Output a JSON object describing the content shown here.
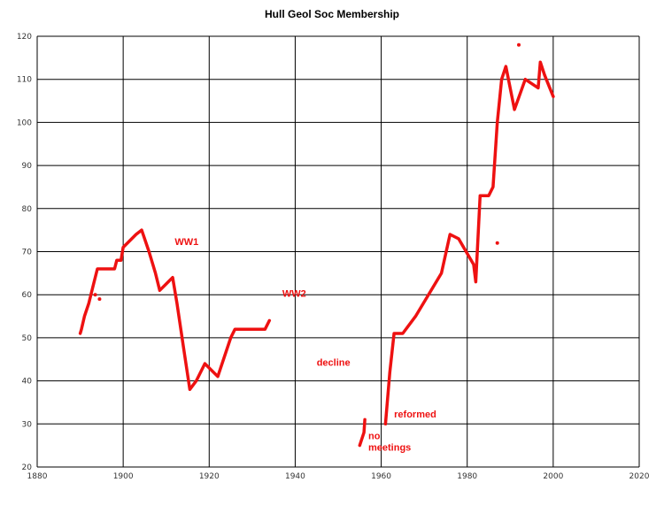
{
  "chart_data": {
    "type": "line",
    "title": "Hull Geol Soc Membership",
    "xlabel": "",
    "ylabel": "",
    "xlim": [
      1880,
      2020
    ],
    "ylim": [
      20,
      120
    ],
    "xticks": [
      "1880",
      "1900",
      "1920",
      "1940",
      "1960",
      "1980",
      "2000",
      "2020"
    ],
    "yticks": [
      "20",
      "30",
      "40",
      "50",
      "60",
      "70",
      "80",
      "90",
      "100",
      "110",
      "120"
    ],
    "grid": true,
    "line_color": "#ee1111",
    "segments": [
      {
        "points": [
          [
            1890,
            51
          ],
          [
            1890.3,
            52
          ],
          [
            1891,
            55
          ],
          [
            1892,
            58
          ],
          [
            1893,
            62
          ],
          [
            1894,
            66
          ],
          [
            1896,
            66
          ],
          [
            1898,
            66
          ],
          [
            1898.5,
            68
          ],
          [
            1899.5,
            68
          ],
          [
            1900,
            71
          ],
          [
            1901,
            72
          ],
          [
            1903,
            74
          ],
          [
            1904.3,
            75
          ],
          [
            1906,
            70
          ],
          [
            1907.5,
            65
          ],
          [
            1908.5,
            61
          ],
          [
            1910.5,
            63
          ],
          [
            1911.5,
            64
          ],
          [
            1912.5,
            58
          ],
          [
            1914,
            48
          ],
          [
            1915.5,
            38
          ],
          [
            1917,
            40
          ],
          [
            1919,
            44
          ],
          [
            1922,
            41
          ],
          [
            1925,
            50
          ],
          [
            1926,
            52
          ],
          [
            1928,
            52
          ],
          [
            1930,
            52
          ],
          [
            1933,
            52
          ],
          [
            1934,
            54
          ]
        ]
      },
      {
        "points": [
          [
            1955,
            25
          ],
          [
            1956,
            28
          ],
          [
            1956.2,
            31
          ]
        ]
      },
      {
        "points": [
          [
            1961,
            30
          ],
          [
            1962,
            42
          ],
          [
            1963,
            51
          ],
          [
            1965,
            51
          ],
          [
            1968,
            55
          ],
          [
            1974,
            65
          ],
          [
            1976,
            74
          ],
          [
            1978,
            73
          ],
          [
            1981.5,
            67
          ],
          [
            1982,
            63
          ],
          [
            1983,
            83
          ],
          [
            1985,
            83
          ],
          [
            1986,
            85
          ],
          [
            1987,
            100
          ],
          [
            1988,
            110
          ],
          [
            1989,
            113
          ],
          [
            1991,
            103
          ],
          [
            1993.5,
            110
          ],
          [
            1996.5,
            108
          ],
          [
            1997,
            114
          ],
          [
            1998,
            111
          ],
          [
            2000,
            106
          ]
        ]
      }
    ],
    "outliers": [
      [
        1893.5,
        60
      ],
      [
        1894.5,
        59
      ],
      [
        1987,
        72
      ],
      [
        1992,
        118
      ]
    ],
    "annotations": [
      {
        "text": "WW1",
        "x": 1912,
        "y": 71.5,
        "lines": [
          "WW1"
        ]
      },
      {
        "text": "WW2",
        "x": 1937,
        "y": 59.5,
        "lines": [
          "WW2"
        ]
      },
      {
        "text": "decline",
        "x": 1945,
        "y": 43.5,
        "lines": [
          "decline"
        ]
      },
      {
        "text": "reformed",
        "x": 1963,
        "y": 31.5,
        "lines": [
          "reformed"
        ]
      },
      {
        "text": "no meetings",
        "x": 1957,
        "y": 26.5,
        "lines": [
          "no",
          "meetings"
        ]
      }
    ]
  }
}
